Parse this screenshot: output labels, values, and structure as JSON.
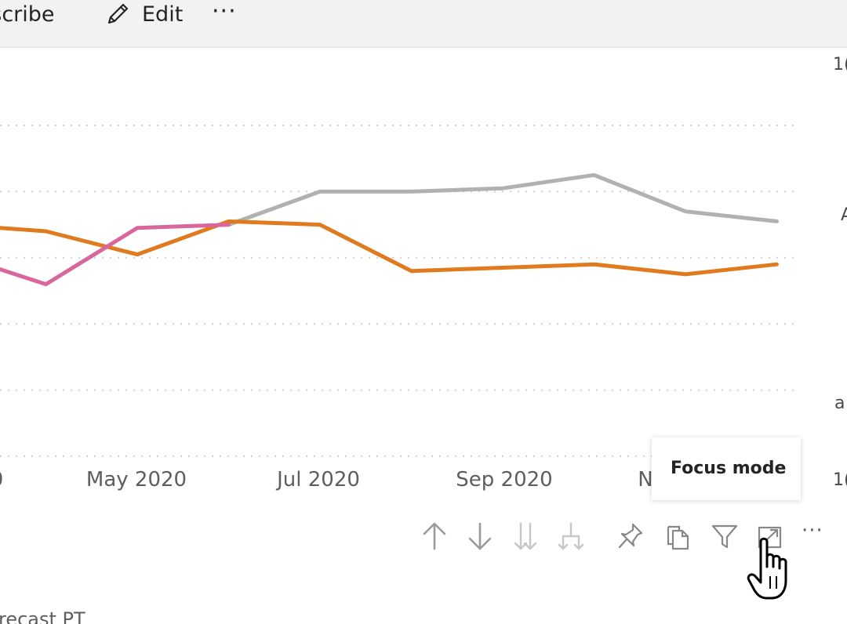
{
  "topbar": {
    "subscribe_label": "ubscribe",
    "edit_label": "Edit",
    "more_label": "···"
  },
  "chart_data": {
    "type": "line",
    "x_tick_labels": [
      "0",
      "May 2020",
      "Jul 2020",
      "Sep 2020",
      "N"
    ],
    "x": [
      "2020-03",
      "2020-04",
      "2020-05",
      "2020-06",
      "2020-07",
      "2020-08",
      "2020-09",
      "2020-10",
      "2020-11",
      "2020-12"
    ],
    "series": [
      {
        "color": "#e07a1f",
        "values": [
          0.7,
          0.68,
          0.61,
          0.71,
          0.7,
          0.56,
          0.57,
          0.58,
          0.55,
          0.58
        ]
      },
      {
        "color": "#d9669d",
        "values": [
          0.61,
          0.52,
          0.69,
          0.7,
          null,
          null,
          null,
          null,
          null,
          null
        ]
      },
      {
        "color": "#b1b1b1",
        "values": [
          null,
          null,
          null,
          0.7,
          0.8,
          0.8,
          0.81,
          0.85,
          0.74,
          0.71
        ]
      }
    ],
    "grid": "dotted horizontal",
    "legend": "none"
  },
  "right_axis": {
    "labels": [
      "1(",
      "A",
      "a",
      "1("
    ]
  },
  "tooltip": {
    "text": "Focus mode"
  },
  "visual_header": {
    "more_label": "···"
  },
  "bottom": {
    "label": "recast PT"
  },
  "colors": {
    "orange": "#e07a1f",
    "pink": "#d9669d",
    "gray": "#b1b1b1",
    "icon": "#8a8886"
  }
}
